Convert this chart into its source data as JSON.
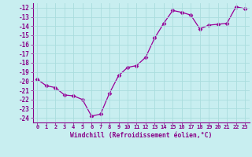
{
  "x": [
    0,
    1,
    2,
    3,
    4,
    5,
    6,
    7,
    8,
    9,
    10,
    11,
    12,
    13,
    14,
    15,
    16,
    17,
    18,
    19,
    20,
    21,
    22,
    23
  ],
  "y": [
    -19.8,
    -20.5,
    -20.7,
    -21.5,
    -21.6,
    -22.0,
    -23.8,
    -23.6,
    -21.3,
    -19.4,
    -18.5,
    -18.3,
    -17.4,
    -15.3,
    -13.7,
    -12.3,
    -12.5,
    -12.8,
    -14.3,
    -13.9,
    -13.8,
    -13.7,
    -11.9,
    -12.1
  ],
  "line_color": "#990099",
  "marker": "D",
  "marker_size": 2.5,
  "bg_color": "#c8eef0",
  "grid_color": "#aadddd",
  "xlabel": "Windchill (Refroidissement éolien,°C)",
  "xlabel_color": "#880088",
  "tick_color": "#880088",
  "ylim": [
    -24.5,
    -11.5
  ],
  "xlim": [
    -0.5,
    23.5
  ],
  "yticks": [
    -12,
    -13,
    -14,
    -15,
    -16,
    -17,
    -18,
    -19,
    -20,
    -21,
    -22,
    -23,
    -24
  ],
  "xticks": [
    0,
    1,
    2,
    3,
    4,
    5,
    6,
    7,
    8,
    9,
    10,
    11,
    12,
    13,
    14,
    15,
    16,
    17,
    18,
    19,
    20,
    21,
    22,
    23
  ],
  "xtick_labels": [
    "0",
    "1",
    "2",
    "3",
    "4",
    "5",
    "6",
    "7",
    "8",
    "9",
    "10",
    "11",
    "12",
    "13",
    "14",
    "15",
    "16",
    "17",
    "18",
    "19",
    "20",
    "21",
    "22",
    "23"
  ]
}
